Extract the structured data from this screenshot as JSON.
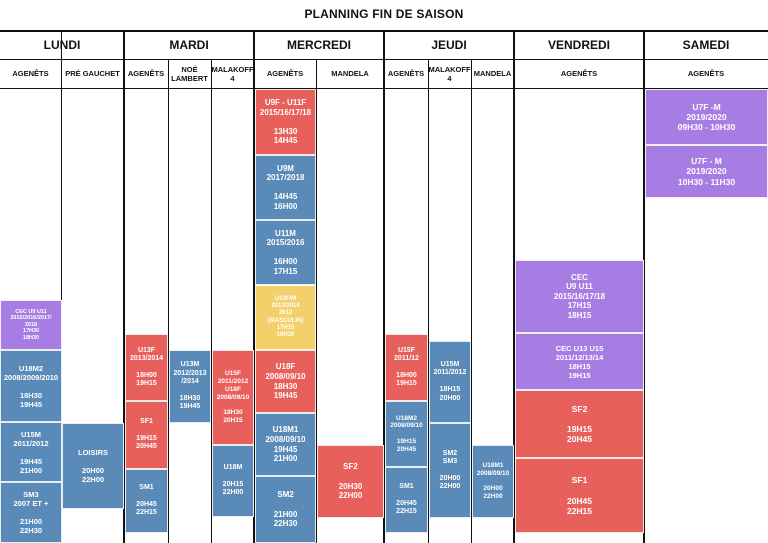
{
  "title": "PLANNING FIN DE SAISON",
  "days": [
    "LUNDI",
    "MARDI",
    "MERCREDI",
    "JEUDI",
    "VENDREDI",
    "SAMEDI"
  ],
  "subheaders": [
    "AGENÊTS",
    "PRÉ GAUCHET",
    "AGENÊTS",
    "NOÉ LAMBERT",
    "MALAKOFF 4",
    "AGENÊTS",
    "MANDELA",
    "AGENÊTS",
    "MALAKOFF 4",
    "MANDELA",
    "AGENÊTS",
    "AGENÊTS"
  ],
  "colors": {
    "blue": "#5a8ab8",
    "red": "#e8605c",
    "purple": "#a77de3",
    "yellow": "#f3d06a"
  },
  "events": [
    {
      "id": "lun-cec",
      "lines": [
        "CEC U9 U11",
        "2015/2016/2017/",
        "2018",
        "17H30",
        "18H30"
      ]
    },
    {
      "id": "lun-u18m2",
      "lines": [
        "U18M2",
        "2008/2009/2010",
        "",
        "18H30",
        "19H45"
      ]
    },
    {
      "id": "lun-u15m",
      "lines": [
        "U15M",
        "2011/2012",
        "",
        "19H45",
        "21H00"
      ]
    },
    {
      "id": "lun-sm3",
      "lines": [
        "SM3",
        "2007 ET +",
        "",
        "21H00",
        "22H30"
      ]
    },
    {
      "id": "pre-loisirs",
      "lines": [
        "LOISIRS",
        "",
        "20H00",
        "22H00"
      ]
    },
    {
      "id": "mar-u13f",
      "lines": [
        "U13F",
        "2013/2014",
        "",
        "18H00",
        "19H15"
      ]
    },
    {
      "id": "mar-sf1",
      "lines": [
        "SF1",
        "",
        "19H15",
        "20H45"
      ]
    },
    {
      "id": "mar-sm1",
      "lines": [
        "SM1",
        "",
        "20H45",
        "22H15"
      ]
    },
    {
      "id": "noe-u13m",
      "lines": [
        "U13M",
        "2012/2013",
        "/2014",
        "",
        "18H30",
        "19H45"
      ]
    },
    {
      "id": "mal-u15f",
      "lines": [
        "U15F",
        "2011/2012",
        "U18F",
        "2008/09/10",
        "",
        "18H30",
        "20H15"
      ]
    },
    {
      "id": "mal-u18m",
      "lines": [
        "U18M",
        "",
        "20H15",
        "22H00"
      ]
    },
    {
      "id": "mer-u9f",
      "lines": [
        "U9F - U11F",
        "2015/16/17/18",
        "",
        "13H30",
        "14H45"
      ]
    },
    {
      "id": "mer-u9m",
      "lines": [
        "U9M",
        "2017/2018",
        "",
        "14H45",
        "16H00"
      ]
    },
    {
      "id": "mer-u11m",
      "lines": [
        "U11M",
        "2015/2016",
        "",
        "16H00",
        "17H15"
      ]
    },
    {
      "id": "mer-u13fm",
      "lines": [
        "U13F/M",
        "2013/2014",
        "2012",
        "(MASCULIN)",
        "17H15",
        "18H30"
      ]
    },
    {
      "id": "mer-u18f",
      "lines": [
        "U18F",
        "2008/09/10",
        "18H30",
        "19H45"
      ]
    },
    {
      "id": "mer-u18m1",
      "lines": [
        "U18M1",
        "2008/09/10",
        "19H45",
        "21H00"
      ]
    },
    {
      "id": "mer-sm2",
      "lines": [
        "SM2",
        "",
        "21H00",
        "22H30"
      ]
    },
    {
      "id": "man-sf2",
      "lines": [
        "SF2",
        "",
        "20H30",
        "22H00"
      ]
    },
    {
      "id": "jeu-u15f",
      "lines": [
        "U15F",
        "2011/12",
        "",
        "18H00",
        "19H15"
      ]
    },
    {
      "id": "jeu-u18m2",
      "lines": [
        "U18M2",
        "2008/09/10",
        "",
        "19H15",
        "20H45"
      ]
    },
    {
      "id": "jeu-sm1",
      "lines": [
        "SM1",
        "",
        "20H45",
        "22H15"
      ]
    },
    {
      "id": "jmal-u15m",
      "lines": [
        "U15M",
        "2011/2012",
        "",
        "18H15",
        "20H00"
      ]
    },
    {
      "id": "jmal-sm2",
      "lines": [
        "SM2",
        "SM3",
        "",
        "20H00",
        "22H00"
      ]
    },
    {
      "id": "jman-u18m1",
      "lines": [
        "U18M1",
        "2008/09/10",
        "",
        "20H00",
        "22H00"
      ]
    },
    {
      "id": "ven-cec1",
      "lines": [
        "CEC",
        "U9 U11",
        "2015/16/17/18",
        "17H15",
        "18H15"
      ]
    },
    {
      "id": "ven-cec2",
      "lines": [
        "CEC U13 U15",
        "2011/12/13/14",
        "18H15",
        "19H15"
      ]
    },
    {
      "id": "ven-sf2",
      "lines": [
        "SF2",
        "",
        "19H15",
        "20H45"
      ]
    },
    {
      "id": "ven-sf1",
      "lines": [
        "SF1",
        "",
        "20H45",
        "22H15"
      ]
    },
    {
      "id": "sam-u7f1",
      "lines": [
        "U7F -M",
        "2019/2020",
        "09H30 - 10H30"
      ]
    },
    {
      "id": "sam-u7f2",
      "lines": [
        "U7F - M",
        "2019/2020",
        "10H30 - 11H30"
      ]
    }
  ]
}
